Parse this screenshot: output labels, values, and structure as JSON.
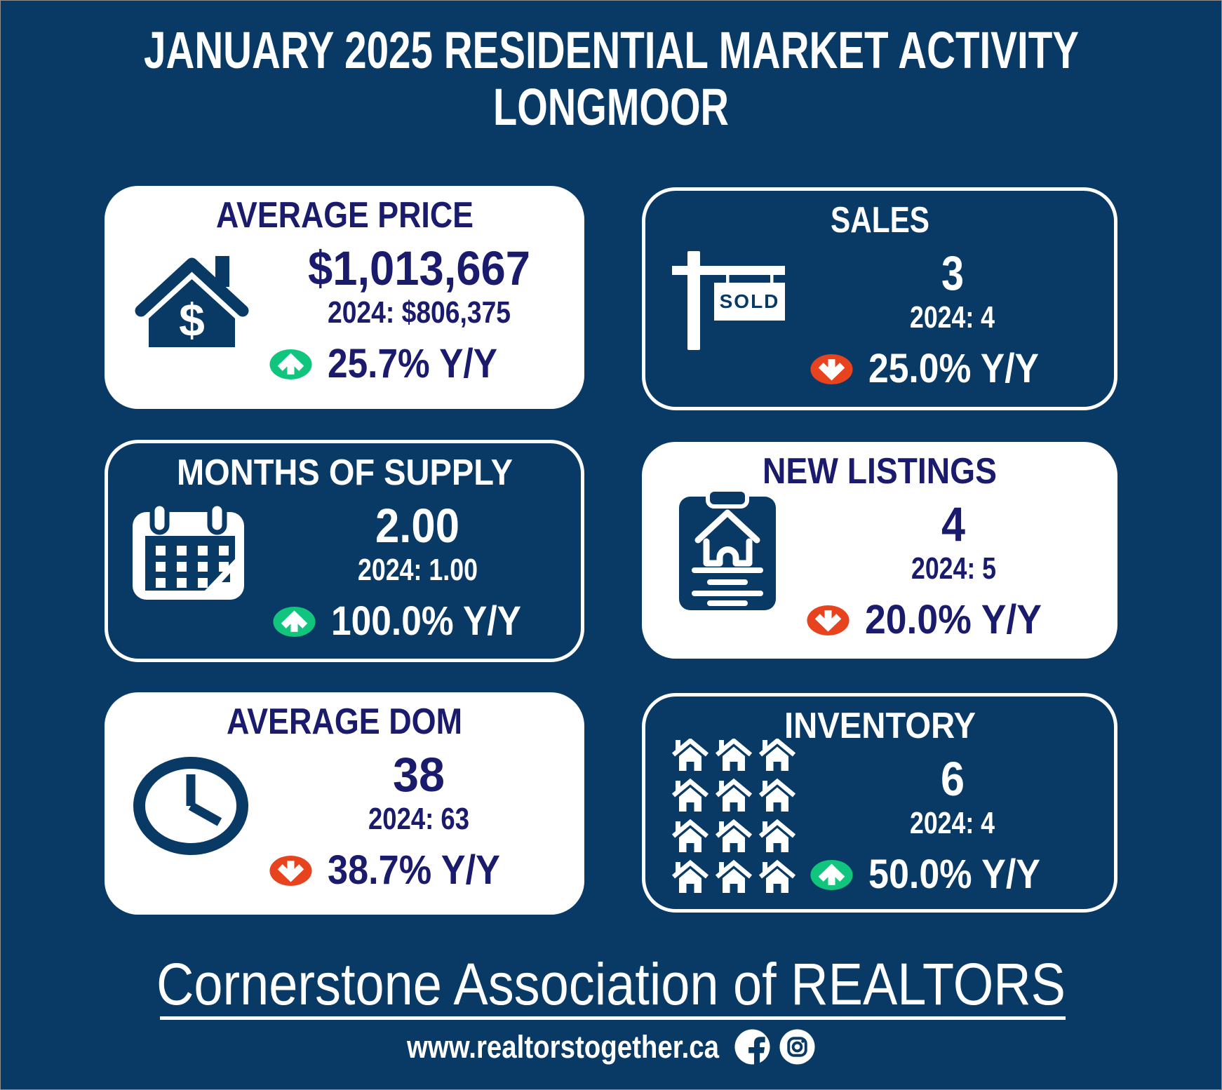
{
  "header": {
    "title_line1": "JANUARY 2025 RESIDENTIAL MARKET ACTIVITY",
    "title_line2": "LONGMOOR"
  },
  "cards": [
    {
      "id": "average-price",
      "title": "AVERAGE PRICE",
      "value": "$1,013,667",
      "previous": "2024: $806,375",
      "change": "25.7% Y/Y",
      "direction": "up",
      "style": "light",
      "icon": "house-dollar-icon"
    },
    {
      "id": "sales",
      "title": "SALES",
      "value": "3",
      "previous": "2024: 4",
      "change": "25.0% Y/Y",
      "direction": "down",
      "style": "dark",
      "icon": "sold-sign-icon"
    },
    {
      "id": "months-of-supply",
      "title": "MONTHS OF SUPPLY",
      "value": "2.00",
      "previous": "2024: 1.00",
      "change": "100.0% Y/Y",
      "direction": "up",
      "style": "dark",
      "icon": "calendar-icon"
    },
    {
      "id": "new-listings",
      "title": "NEW LISTINGS",
      "value": "4",
      "previous": "2024: 5",
      "change": "20.0% Y/Y",
      "direction": "down",
      "style": "light",
      "icon": "clipboard-house-icon"
    },
    {
      "id": "average-dom",
      "title": "AVERAGE DOM",
      "value": "38",
      "previous": "2024: 63",
      "change": "38.7% Y/Y",
      "direction": "down",
      "style": "light",
      "icon": "clock-icon"
    },
    {
      "id": "inventory",
      "title": "INVENTORY",
      "value": "6",
      "previous": "2024: 4",
      "change": "50.0% Y/Y",
      "direction": "up",
      "style": "dark",
      "icon": "houses-grid-icon"
    }
  ],
  "sold_sign_text": "SOLD",
  "footer": {
    "brand": "Cornerstone Association of REALTORS",
    "website": "www.realtorstogether.ca",
    "social_icons": [
      "facebook",
      "instagram"
    ]
  },
  "colors": {
    "background_navy": "#083a65",
    "card_white": "#ffffff",
    "text_indigo": "#1b1b6e",
    "up_green": "#12c57f",
    "down_red": "#e7431e",
    "frame_gray": "#8f8f8f"
  }
}
